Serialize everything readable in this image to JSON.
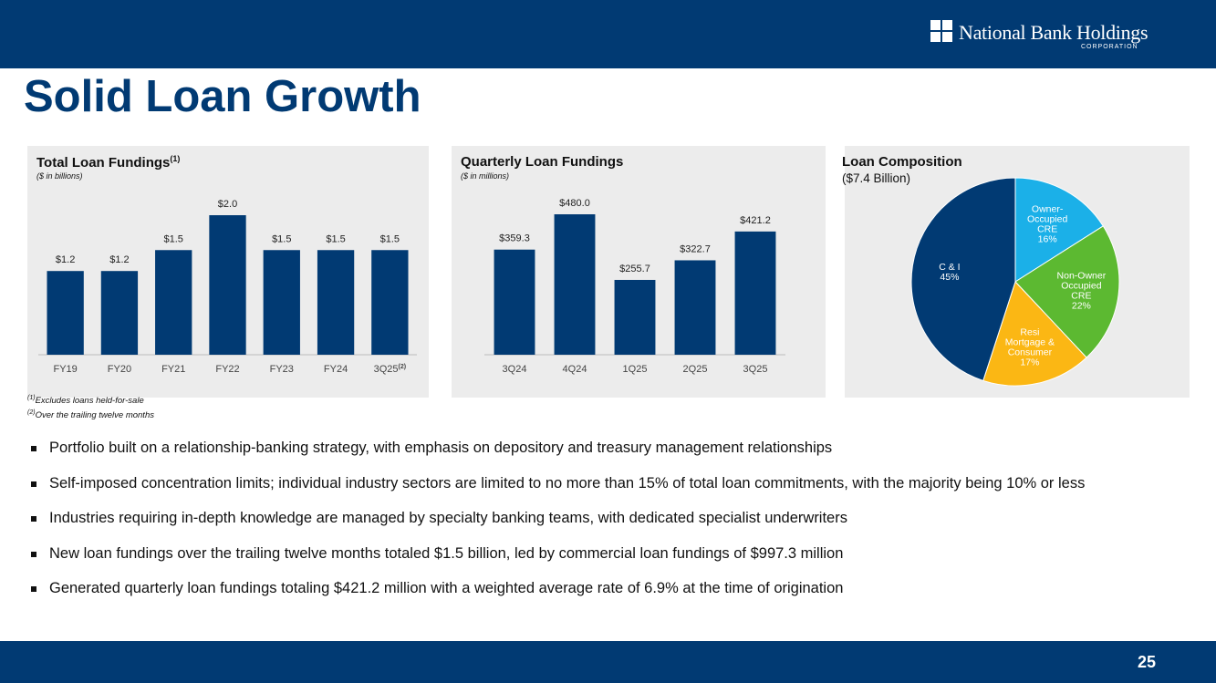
{
  "header": {
    "logo_name": "National Bank Holdings",
    "logo_sub": "CORPORATION",
    "title": "Solid Loan Growth"
  },
  "footnotes": {
    "f1_mark": "(1)",
    "f1_text": "Excludes loans held-for-sale",
    "f2_mark": "(2)",
    "f2_text": "Over the trailing twelve months"
  },
  "bullets": [
    "Portfolio built on a relationship-banking strategy, with emphasis on depository and treasury management relationships",
    "Self-imposed concentration limits; individual industry sectors are limited to no more than 15% of total loan commitments, with the majority being 10% or less",
    "Industries requiring in-depth knowledge are managed by specialty banking teams, with dedicated specialist underwriters",
    "New loan fundings over the trailing twelve months totaled $1.5 billion, led by commercial loan fundings of $997.3 million",
    "Generated quarterly loan fundings totaling $421.2 million with a weighted average rate of 6.9% at the time of origination"
  ],
  "page_number": "25",
  "colors": {
    "navy": "#013a73",
    "panel_bg": "#ececec",
    "bar": "#013a73",
    "pie_owner_occupied": "#1bb0e8",
    "pie_non_owner": "#5cb931",
    "pie_resi": "#fbb714",
    "pie_ci": "#013a73"
  },
  "chart_data": [
    {
      "type": "bar",
      "title": "Total Loan Fundings",
      "title_sup": "(1)",
      "subtitle": "($ in billions)",
      "categories": [
        "FY19",
        "FY20",
        "FY21",
        "FY22",
        "FY23",
        "FY24",
        "3Q25"
      ],
      "category_sups": [
        "",
        "",
        "",
        "",
        "",
        "",
        "(2)"
      ],
      "values": [
        1.2,
        1.2,
        1.5,
        2.0,
        1.5,
        1.5,
        1.5
      ],
      "labels": [
        "$1.2",
        "$1.2",
        "$1.5",
        "$2.0",
        "$1.5",
        "$1.5",
        "$1.5"
      ],
      "ylim": [
        0,
        2.0
      ]
    },
    {
      "type": "bar",
      "title": "Quarterly Loan Fundings",
      "subtitle": "($ in millions)",
      "categories": [
        "3Q24",
        "4Q24",
        "1Q25",
        "2Q25",
        "3Q25"
      ],
      "values": [
        359.3,
        480.0,
        255.7,
        322.7,
        421.2
      ],
      "labels": [
        "$359.3",
        "$480.0",
        "$255.7",
        "$322.7",
        "$421.2"
      ],
      "ylim": [
        0,
        480
      ]
    },
    {
      "type": "pie",
      "title": "Loan Composition",
      "subtitle": "($7.4 Billion)",
      "slices": [
        {
          "label_lines": [
            "Owner-",
            "Occupied",
            "CRE",
            "16%"
          ],
          "value": 16,
          "color": "#1bb0e8"
        },
        {
          "label_lines": [
            "Non-Owner",
            "Occupied",
            "CRE",
            "22%"
          ],
          "value": 22,
          "color": "#5cb931"
        },
        {
          "label_lines": [
            "Resi",
            "Mortgage &",
            "Consumer",
            "17%"
          ],
          "value": 17,
          "color": "#fbb714"
        },
        {
          "label_lines": [
            "C & I",
            "45%"
          ],
          "value": 45,
          "color": "#013a73"
        }
      ]
    }
  ]
}
